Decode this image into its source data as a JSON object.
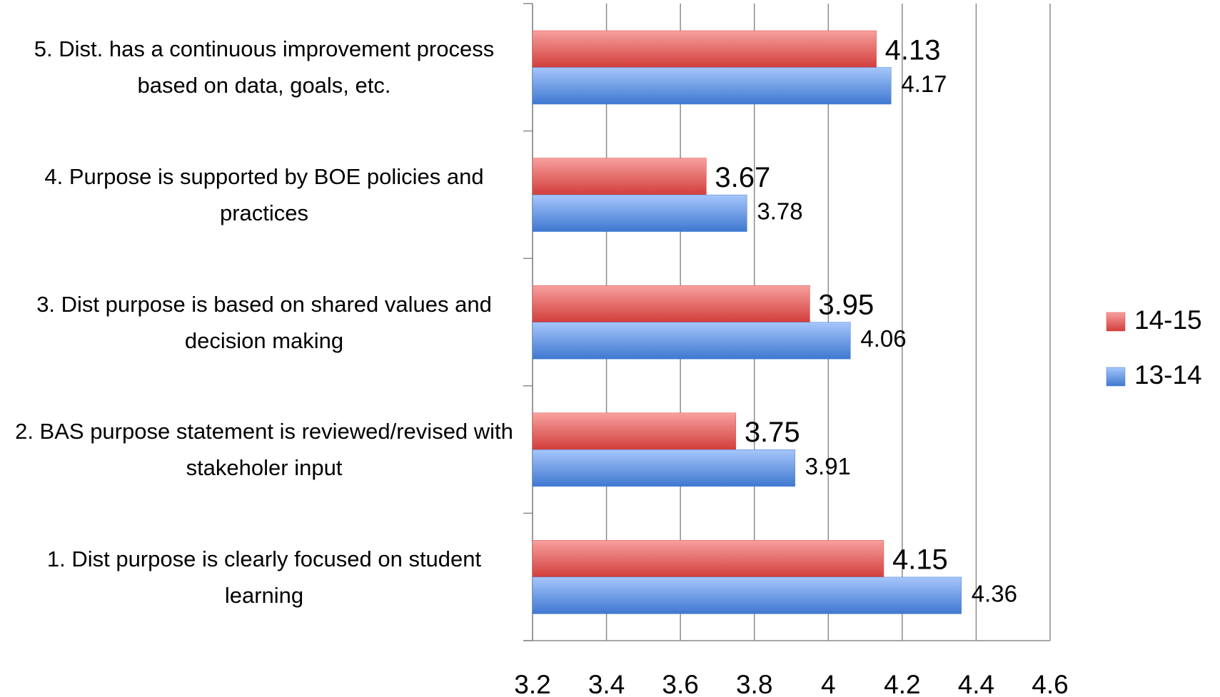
{
  "chart_data": {
    "type": "bar",
    "orientation": "horizontal",
    "categories": [
      "1. Dist purpose is clearly focused on student learning",
      "2. BAS purpose statement is reviewed/revised with stakeholer input",
      "3. Dist purpose is based on shared values and decision making",
      "4. Purpose is supported by BOE policies and practices",
      "5. Dist. has a continuous improvement process based on data, goals, etc."
    ],
    "series": [
      {
        "name": "14-15",
        "color": "#d94a47",
        "values": [
          4.15,
          3.75,
          3.95,
          3.67,
          4.13
        ]
      },
      {
        "name": "13-14",
        "color": "#4a7fd4",
        "values": [
          4.36,
          3.91,
          4.06,
          3.78,
          4.17
        ]
      }
    ],
    "xlim": [
      3.2,
      4.6
    ],
    "xticks": [
      3.2,
      3.4,
      3.6,
      3.8,
      4,
      4.2,
      4.4,
      4.6
    ],
    "grid": true,
    "legend": "right"
  }
}
